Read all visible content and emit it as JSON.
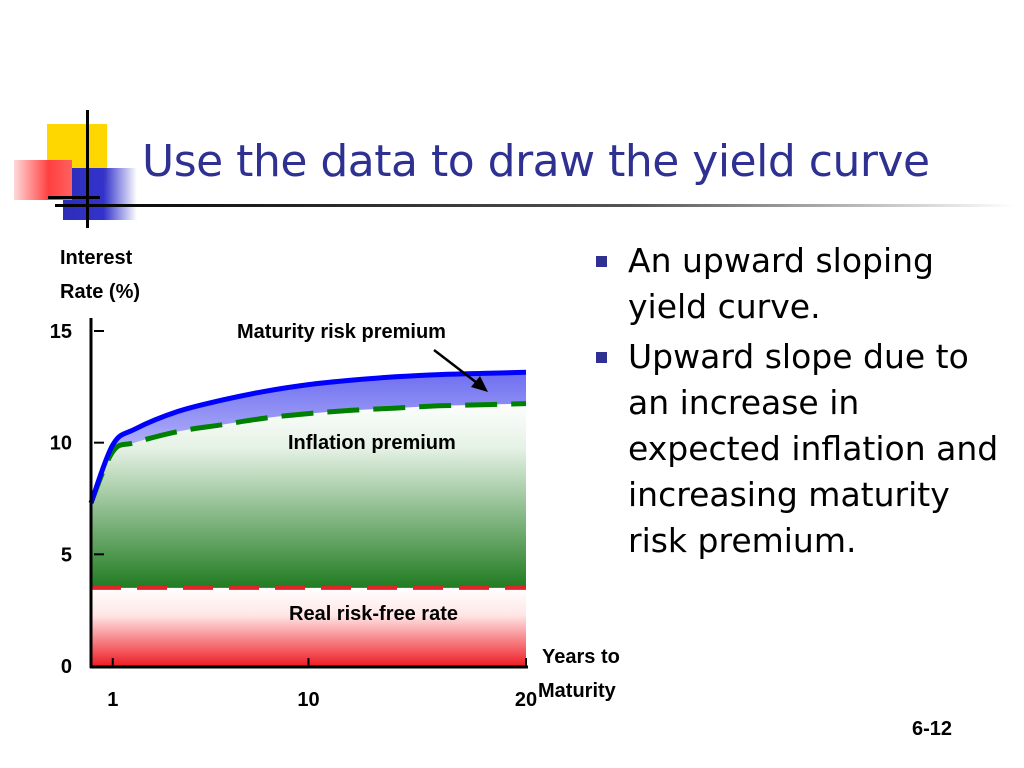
{
  "slide": {
    "title": "Use the data to draw the yield curve",
    "bullets": [
      "An upward sloping yield curve.",
      "Upward slope due to an increase in expected inflation and increasing maturity risk premium."
    ],
    "slide_number": "6-12"
  },
  "colors": {
    "title": "#2e3192",
    "yield_curve": "#0000ff",
    "inflation_line": "#008000",
    "real_rate_line": "#e0242b",
    "deco_yellow": "#ffd700",
    "deco_blue": "#3333cc",
    "deco_red": "#ff4040"
  },
  "chart_data": {
    "type": "area",
    "ylabel_lines": [
      "Interest",
      "Rate (%)"
    ],
    "xlabel_lines": [
      "Years to",
      "Maturity"
    ],
    "x_ticks": [
      1,
      10,
      20
    ],
    "x_tick_labels": [
      "1",
      "10",
      "20"
    ],
    "y_ticks": [
      0,
      5,
      10,
      15
    ],
    "y_tick_labels": [
      "0",
      "5",
      "10",
      "15"
    ],
    "xlim": [
      0,
      20
    ],
    "ylim": [
      0,
      15
    ],
    "series": [
      {
        "name": "Real risk-free rate",
        "x": [
          0,
          20
        ],
        "y": [
          3.5,
          3.5
        ],
        "style": "dashed"
      },
      {
        "name": "Inflation premium",
        "x": [
          0,
          1,
          2,
          4,
          6,
          8,
          10,
          12,
          14,
          16,
          18,
          20
        ],
        "y": [
          7.3,
          9.6,
          10.0,
          10.5,
          10.8,
          11.1,
          11.3,
          11.45,
          11.55,
          11.65,
          11.7,
          11.75
        ],
        "style": "dashed"
      },
      {
        "name": "Maturity risk premium",
        "x": [
          0,
          1,
          2,
          4,
          6,
          8,
          10,
          12,
          14,
          16,
          18,
          20
        ],
        "y": [
          7.3,
          9.9,
          10.6,
          11.4,
          11.9,
          12.3,
          12.6,
          12.8,
          12.95,
          13.05,
          13.1,
          13.15
        ],
        "style": "solid"
      }
    ],
    "region_labels": [
      "Maturity risk premium",
      "Inflation premium",
      "Real risk-free rate"
    ],
    "grid": false,
    "legend": "none"
  }
}
